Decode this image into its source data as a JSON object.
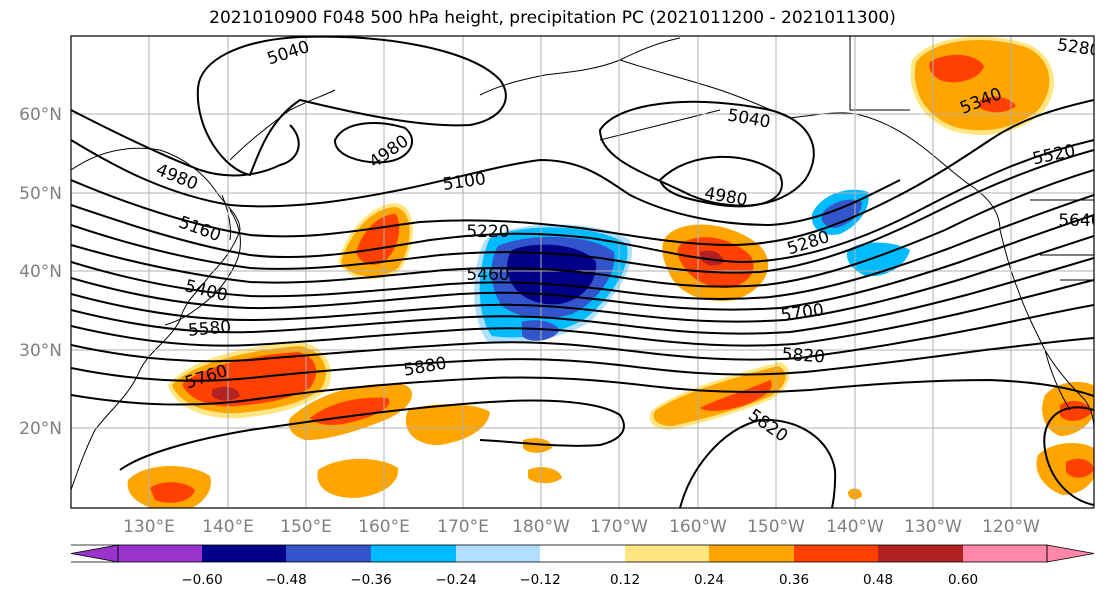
{
  "title": "2021010900 F048 500 hPa height, precipitation PC (2021011200 - 2021011300)",
  "map": {
    "lon_labels": [
      "130°E",
      "140°E",
      "150°E",
      "160°E",
      "170°E",
      "180°W",
      "170°W",
      "160°W",
      "150°W",
      "140°W",
      "130°W",
      "120°W"
    ],
    "lat_labels": [
      "20°N",
      "30°N",
      "40°N",
      "50°N",
      "60°N"
    ],
    "height_contour_labels": [
      "5040",
      "4980",
      "4980",
      "5100",
      "5160",
      "5220",
      "5460",
      "5400",
      "5580",
      "5760",
      "5880",
      "5040",
      "4980",
      "5280",
      "5520",
      "5340",
      "5700",
      "5820",
      "5820",
      "5640",
      "5280"
    ],
    "gridlines": true
  },
  "colorbar": {
    "ticks": [
      "−0.60",
      "−0.48",
      "−0.36",
      "−0.24",
      "−0.12",
      "0.12",
      "0.24",
      "0.36",
      "0.48",
      "0.60"
    ],
    "colors": [
      "#9933cc",
      "#000088",
      "#3355cc",
      "#00bbff",
      "#b0e0ff",
      "#ffffff",
      "#ffe680",
      "#ffa500",
      "#ff4000",
      "#b22222",
      "#ff88aa"
    ]
  }
}
